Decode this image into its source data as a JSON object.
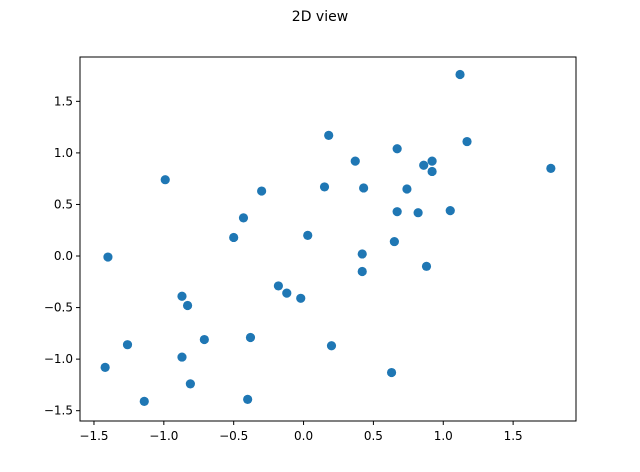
{
  "chart_data": {
    "type": "scatter",
    "title": "2D view",
    "xlabel": "",
    "ylabel": "",
    "xlim": [
      -1.6,
      1.95
    ],
    "ylim": [
      -1.6,
      1.93
    ],
    "xticks": [
      -1.5,
      -1.0,
      -0.5,
      0.0,
      0.5,
      1.0,
      1.5
    ],
    "xtick_labels": [
      "−1.5",
      "−1.0",
      "−0.5",
      "0.0",
      "0.5",
      "1.0",
      "1.5"
    ],
    "yticks": [
      -1.5,
      -1.0,
      -0.5,
      0.0,
      0.5,
      1.0,
      1.5
    ],
    "ytick_labels": [
      "−1.5",
      "−1.0",
      "−0.5",
      "0.0",
      "0.5",
      "1.0",
      "1.5"
    ],
    "grid": false,
    "color": "#1f77b4",
    "points": [
      {
        "x": 1.12,
        "y": 1.76
      },
      {
        "x": 0.18,
        "y": 1.17
      },
      {
        "x": 1.17,
        "y": 1.11
      },
      {
        "x": 0.67,
        "y": 1.04
      },
      {
        "x": 0.37,
        "y": 0.92
      },
      {
        "x": 0.92,
        "y": 0.92
      },
      {
        "x": 0.86,
        "y": 0.88
      },
      {
        "x": 1.77,
        "y": 0.85
      },
      {
        "x": 0.92,
        "y": 0.82
      },
      {
        "x": -0.99,
        "y": 0.74
      },
      {
        "x": 0.15,
        "y": 0.67
      },
      {
        "x": 0.43,
        "y": 0.66
      },
      {
        "x": 0.74,
        "y": 0.65
      },
      {
        "x": -0.3,
        "y": 0.63
      },
      {
        "x": 0.67,
        "y": 0.43
      },
      {
        "x": 1.05,
        "y": 0.44
      },
      {
        "x": 0.82,
        "y": 0.42
      },
      {
        "x": -0.43,
        "y": 0.37
      },
      {
        "x": 0.03,
        "y": 0.2
      },
      {
        "x": -0.5,
        "y": 0.18
      },
      {
        "x": 0.65,
        "y": 0.14
      },
      {
        "x": 0.42,
        "y": 0.02
      },
      {
        "x": -1.4,
        "y": -0.01
      },
      {
        "x": 0.88,
        "y": -0.1
      },
      {
        "x": 0.42,
        "y": -0.15
      },
      {
        "x": -0.18,
        "y": -0.29
      },
      {
        "x": -0.12,
        "y": -0.36
      },
      {
        "x": -0.87,
        "y": -0.39
      },
      {
        "x": -0.02,
        "y": -0.41
      },
      {
        "x": -0.83,
        "y": -0.48
      },
      {
        "x": -0.38,
        "y": -0.79
      },
      {
        "x": -0.71,
        "y": -0.81
      },
      {
        "x": -1.26,
        "y": -0.86
      },
      {
        "x": 0.2,
        "y": -0.87
      },
      {
        "x": -0.87,
        "y": -0.98
      },
      {
        "x": -1.42,
        "y": -1.08
      },
      {
        "x": 0.63,
        "y": -1.13
      },
      {
        "x": -0.81,
        "y": -1.24
      },
      {
        "x": -0.4,
        "y": -1.39
      },
      {
        "x": -1.14,
        "y": -1.41
      }
    ]
  }
}
